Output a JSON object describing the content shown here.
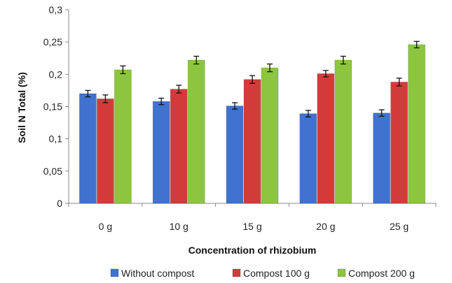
{
  "chart_data": {
    "type": "bar",
    "title": "",
    "xlabel": "Concentration of rhizobium",
    "ylabel": "Soil  N Total (%)",
    "categories": [
      "0 g",
      "10 g",
      "15 g",
      "20 g",
      "25 g"
    ],
    "series": [
      {
        "name": "Without compost",
        "color": "#3f73cf",
        "values": [
          0.17,
          0.158,
          0.151,
          0.139,
          0.14
        ],
        "errors": [
          0.005,
          0.005,
          0.005,
          0.005,
          0.005
        ]
      },
      {
        "name": "Compost 100 g",
        "color": "#d33b3b",
        "values": [
          0.162,
          0.177,
          0.192,
          0.201,
          0.188
        ],
        "errors": [
          0.006,
          0.006,
          0.006,
          0.005,
          0.006
        ]
      },
      {
        "name": "Compost 200 g",
        "color": "#8cc63f",
        "values": [
          0.207,
          0.222,
          0.21,
          0.222,
          0.246
        ],
        "errors": [
          0.006,
          0.006,
          0.006,
          0.006,
          0.005
        ]
      }
    ],
    "ylim": [
      0,
      0.3
    ],
    "yticks": [
      0,
      0.05,
      0.1,
      0.15,
      0.2,
      0.25,
      0.3
    ],
    "ytick_labels": [
      "0",
      "0,05",
      "0,1",
      "0,15",
      "0,2",
      "0,25",
      "0,3"
    ],
    "grid": false,
    "legend_position": "bottom"
  }
}
